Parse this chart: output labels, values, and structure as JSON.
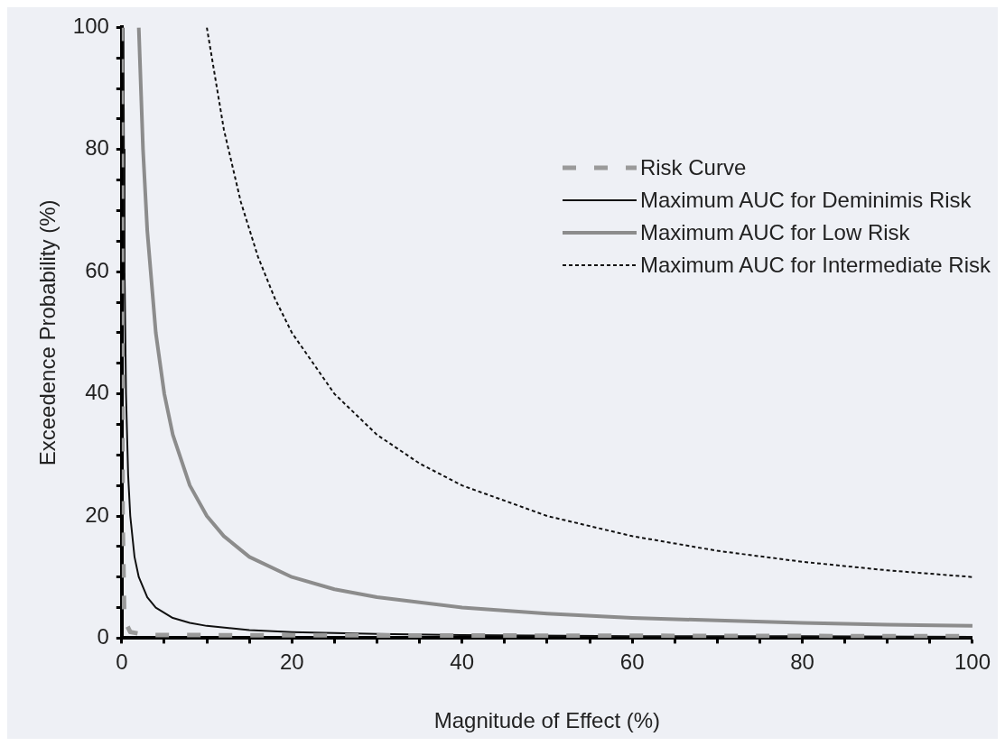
{
  "chart_data": {
    "type": "line",
    "xlabel": "Magnitude of Effect (%)",
    "ylabel": "Exceedence Probability (%)",
    "xlim": [
      0,
      100
    ],
    "ylim": [
      0,
      100
    ],
    "xticks": [
      0,
      {
        "value": 5,
        "label": null
      },
      {
        "value": 10,
        "label": null
      },
      {
        "value": 15,
        "label": null
      },
      20,
      {
        "value": 25,
        "label": null
      },
      {
        "value": 30,
        "label": null
      },
      {
        "value": 35,
        "label": null
      },
      40,
      {
        "value": 45,
        "label": null
      },
      {
        "value": 50,
        "label": null
      },
      {
        "value": 55,
        "label": null
      },
      60,
      {
        "value": 65,
        "label": null
      },
      {
        "value": 70,
        "label": null
      },
      {
        "value": 75,
        "label": null
      },
      80,
      {
        "value": 85,
        "label": null
      },
      {
        "value": 90,
        "label": null
      },
      {
        "value": 95,
        "label": null
      },
      100
    ],
    "yticks": [
      0,
      {
        "value": 5,
        "label": null
      },
      {
        "value": 10,
        "label": null
      },
      {
        "value": 15,
        "label": null
      },
      20,
      {
        "value": 25,
        "label": null
      },
      {
        "value": 30,
        "label": null
      },
      {
        "value": 35,
        "label": null
      },
      40,
      {
        "value": 45,
        "label": null
      },
      {
        "value": 50,
        "label": null
      },
      {
        "value": 55,
        "label": null
      },
      60,
      {
        "value": 65,
        "label": null
      },
      {
        "value": 70,
        "label": null
      },
      {
        "value": 75,
        "label": null
      },
      80,
      {
        "value": 85,
        "label": null
      },
      {
        "value": 90,
        "label": null
      },
      {
        "value": 95,
        "label": null
      },
      100
    ],
    "grid": false,
    "legend": "top right",
    "marker": "none",
    "series": [
      {
        "name": "Risk Curve",
        "color": "#9a9a9a",
        "line_style": "dashed",
        "x": [
          0,
          0.1,
          0.3,
          1,
          3,
          100
        ],
        "values": [
          100,
          20,
          3,
          1,
          0.5,
          0.3
        ]
      },
      {
        "name": "Maximum AUC for Deminimis Risk",
        "color": "#111111",
        "line_style": "solid",
        "x": [
          0.2,
          0.25,
          0.33,
          0.5,
          0.75,
          1,
          1.5,
          2,
          3,
          4,
          6,
          8,
          10,
          15,
          20,
          30,
          40,
          60,
          80,
          100
        ],
        "values": [
          100,
          80,
          60,
          40,
          26.7,
          20,
          13.3,
          10,
          6.7,
          5,
          3.3,
          2.5,
          2,
          1.3,
          1,
          0.7,
          0.5,
          0.3,
          0.3,
          0.2
        ]
      },
      {
        "name": "Maximum AUC for Low Risk",
        "color": "#8c8c8c",
        "line_style": "solid",
        "x": [
          2,
          2.5,
          3,
          4,
          5,
          6,
          8,
          10,
          12,
          15,
          20,
          25,
          30,
          40,
          50,
          60,
          70,
          80,
          90,
          100
        ],
        "values": [
          100,
          80,
          66.7,
          50,
          40,
          33.3,
          25,
          20,
          16.7,
          13.3,
          10,
          8,
          6.7,
          5,
          4,
          3.3,
          2.9,
          2.5,
          2.2,
          2
        ]
      },
      {
        "name": "Maximum AUC for Intermediate Risk",
        "color": "#111111",
        "line_style": "dotted",
        "x": [
          10,
          12,
          14,
          16,
          18,
          20,
          25,
          30,
          35,
          40,
          50,
          60,
          70,
          80,
          90,
          100
        ],
        "values": [
          100,
          83.3,
          71.4,
          62.5,
          55.6,
          50,
          40,
          33.3,
          28.6,
          25,
          20,
          16.7,
          14.3,
          12.5,
          11.1,
          10
        ]
      }
    ]
  }
}
